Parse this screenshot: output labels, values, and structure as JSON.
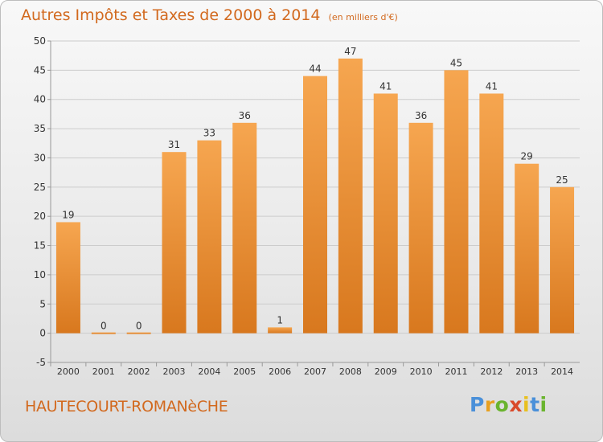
{
  "chart_data": {
    "type": "bar",
    "title": "Autres Impôts et Taxes de 2000 à 2014",
    "unit": "(en milliers d'€)",
    "categories": [
      "2000",
      "2001",
      "2002",
      "2003",
      "2004",
      "2005",
      "2006",
      "2007",
      "2008",
      "2009",
      "2010",
      "2011",
      "2012",
      "2013",
      "2014"
    ],
    "values": [
      19,
      0,
      0,
      31,
      33,
      36,
      1,
      44,
      47,
      41,
      36,
      45,
      41,
      29,
      25
    ],
    "data_labels": [
      "19",
      "0",
      "0",
      "31",
      "33",
      "36",
      "1",
      "44",
      "47",
      "41",
      "36",
      "45",
      "41",
      "29",
      "25"
    ],
    "ylim": [
      -5,
      50
    ],
    "yticks": [
      -5,
      0,
      5,
      10,
      15,
      20,
      25,
      30,
      35,
      40,
      45,
      50
    ],
    "ytick_labels": [
      "-5",
      "0",
      "5",
      "10",
      "15",
      "20",
      "25",
      "30",
      "35",
      "40",
      "45",
      "50"
    ],
    "grid": true,
    "bar_color": "#f0a050",
    "bar_color_dark": "#d8781e"
  },
  "footer": {
    "location": "HAUTECOURT-ROMANèCHE",
    "brand": [
      "P",
      "r",
      "o",
      "x",
      "i",
      "t",
      "i"
    ],
    "brand_colors": [
      "#4a90d9",
      "#e8a020",
      "#6ab42e",
      "#d94a2a",
      "#e8c020",
      "#4a90d9",
      "#6ab42e"
    ]
  },
  "colors": {
    "accent": "#d2691e",
    "grid": "#cccccc",
    "axis_text": "#333333"
  }
}
